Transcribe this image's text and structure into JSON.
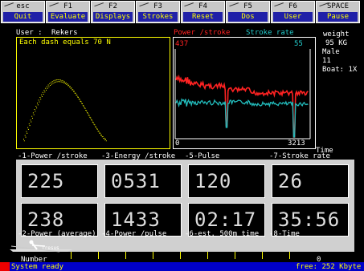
{
  "fkeys": [
    {
      "key": "esc",
      "label": "Quit"
    },
    {
      "key": "F1",
      "label": "Evaluate"
    },
    {
      "key": "F2",
      "label": "Displays"
    },
    {
      "key": "F3",
      "label": "Strokes"
    },
    {
      "key": "F4",
      "label": "Reset"
    },
    {
      "key": "F5",
      "label": "Dos"
    },
    {
      "key": "F6",
      "label": "User"
    },
    {
      "key": "SPACE",
      "label": "Pause"
    }
  ],
  "user": {
    "label": "User :",
    "name": "Rekers"
  },
  "left_plot": {
    "note": "Each dash equals 70 N"
  },
  "right_plot": {
    "legend_power": "Power /stroke",
    "legend_rate": "Stroke rate",
    "y_power": "437",
    "y_rate": "55",
    "x_start": "0",
    "x_end": "3213",
    "x_label": "Time"
  },
  "profile": {
    "weight_label": "weight",
    "weight": "95 KG",
    "sex": "Male",
    "number": "11",
    "boat": "Boat: 1X"
  },
  "top_labels": [
    "-1-Power /stroke",
    "-3-Energy /stroke",
    "-5-Pulse",
    "-7-Stroke rate"
  ],
  "bottom_labels": [
    "-2-Power (average)",
    "-4-Power /pulse",
    "-6-est. 500m time",
    "-8-Time"
  ],
  "values_top": [
    "225",
    "0531",
    "120",
    "26"
  ],
  "values_bottom": [
    "238",
    "1433",
    "02:17",
    "35:56"
  ],
  "progress": {
    "label": "Number",
    "end": "0"
  },
  "boat_caption": "Tresus",
  "status": {
    "message": "System ready",
    "free": "free: 252 Kbyte"
  }
}
